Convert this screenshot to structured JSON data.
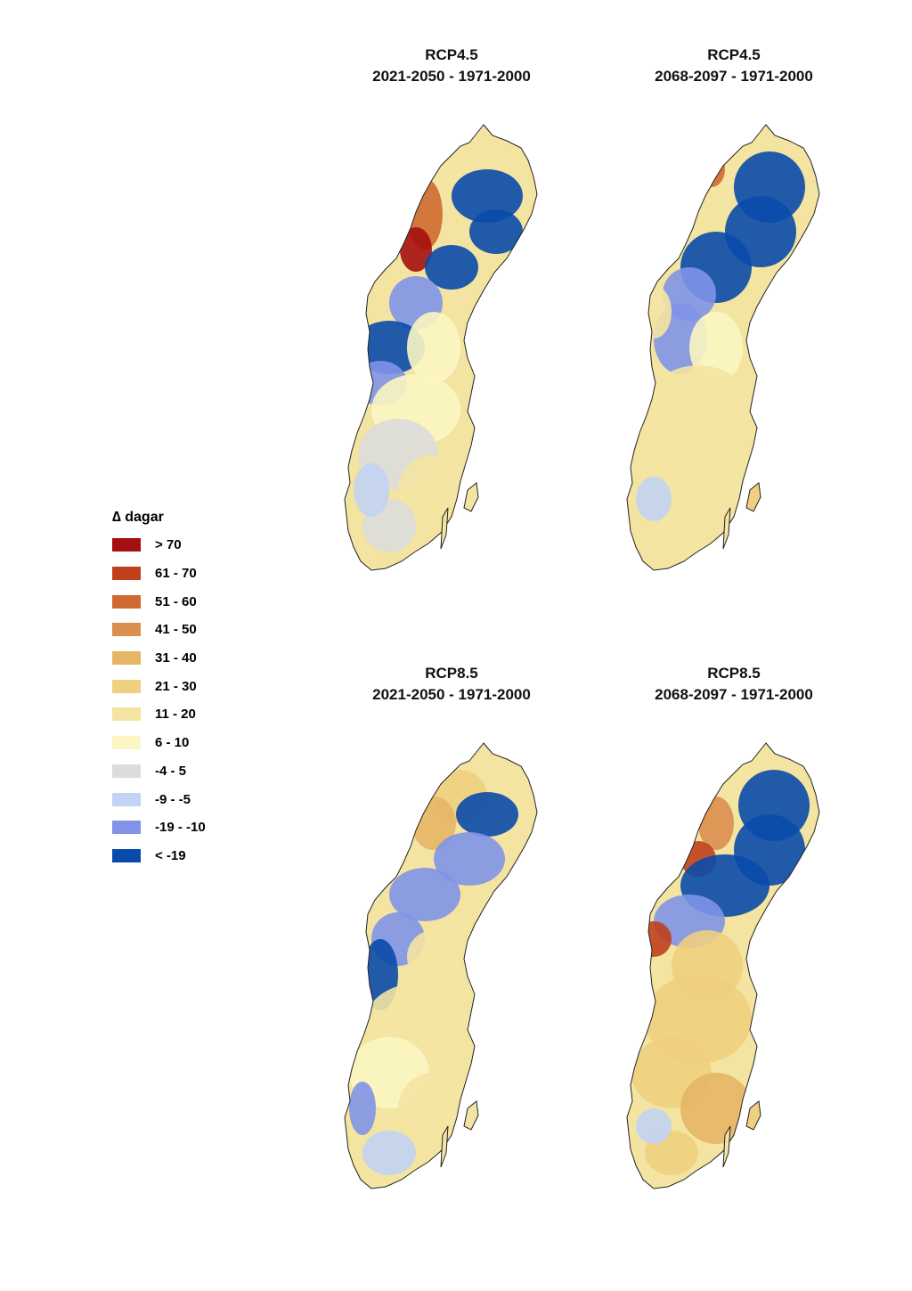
{
  "legend": {
    "symbol": "∆",
    "title": "dagar",
    "classes": [
      {
        "label": "> 70",
        "color": "#a50f0f"
      },
      {
        "label": "61 - 70",
        "color": "#c0401d"
      },
      {
        "label": "51 - 60",
        "color": "#cf6a32"
      },
      {
        "label": "41 - 50",
        "color": "#db8e4f"
      },
      {
        "label": "31 - 40",
        "color": "#e7b566"
      },
      {
        "label": "21 - 30",
        "color": "#efcf80"
      },
      {
        "label": "11 - 20",
        "color": "#f4e4a2"
      },
      {
        "label": "6 - 10",
        "color": "#fbf6c2"
      },
      {
        "label": "-4 - 5",
        "color": "#dcdcdc"
      },
      {
        "label": "-9 - -5",
        "color": "#c2d3f3"
      },
      {
        "label": "-19 - -10",
        "color": "#8093e8"
      },
      {
        "label": "< -19",
        "color": "#0a4aaa"
      }
    ]
  },
  "panels": [
    {
      "scenario": "RCP4.5",
      "period": "2021-2050 - 1971-2000"
    },
    {
      "scenario": "RCP4.5",
      "period": "2068-2097 - 1971-2000"
    },
    {
      "scenario": "RCP8.5",
      "period": "2021-2050 - 1971-2000"
    },
    {
      "scenario": "RCP8.5",
      "period": "2068-2097 - 1971-2000"
    }
  ]
}
